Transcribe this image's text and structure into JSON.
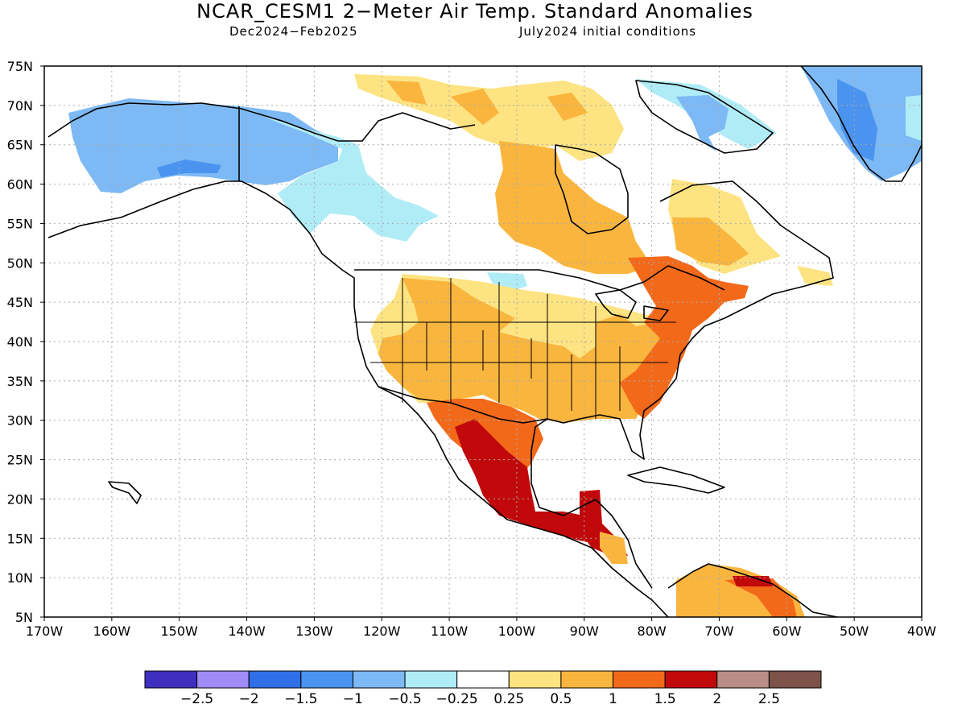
{
  "title": "NCAR_CESM1 2−Meter Air Temp. Standard Anomalies",
  "subtitle_left": "Dec2024−Feb2025",
  "subtitle_right": "July2024 initial conditions",
  "lat_labels": [
    "75N",
    "70N",
    "65N",
    "60N",
    "55N",
    "50N",
    "45N",
    "40N",
    "35N",
    "30N",
    "25N",
    "20N",
    "15N",
    "10N",
    "5N"
  ],
  "lon_labels": [
    "170W",
    "160W",
    "150W",
    "140W",
    "130W",
    "120W",
    "110W",
    "100W",
    "90W",
    "80W",
    "70W",
    "60W",
    "50W",
    "40W"
  ],
  "colorbar": {
    "colors": [
      "#3f2fbf",
      "#a08cf7",
      "#2f6fe8",
      "#4a93ef",
      "#7db9f4",
      "#b0ecf6",
      "#ffffff",
      "#fde381",
      "#f9b53e",
      "#f3691a",
      "#c1090b",
      "#b98e86",
      "#7d5248"
    ],
    "labels": [
      "−2.5",
      "−2",
      "−1.5",
      "−1",
      "−0.5",
      "−0.25",
      "0.25",
      "0.5",
      "1",
      "1.5",
      "2",
      "2.5"
    ]
  },
  "map_style": {
    "ocean": "#ffffff",
    "gridline": "#aaaaaa",
    "coast": "#000000"
  }
}
